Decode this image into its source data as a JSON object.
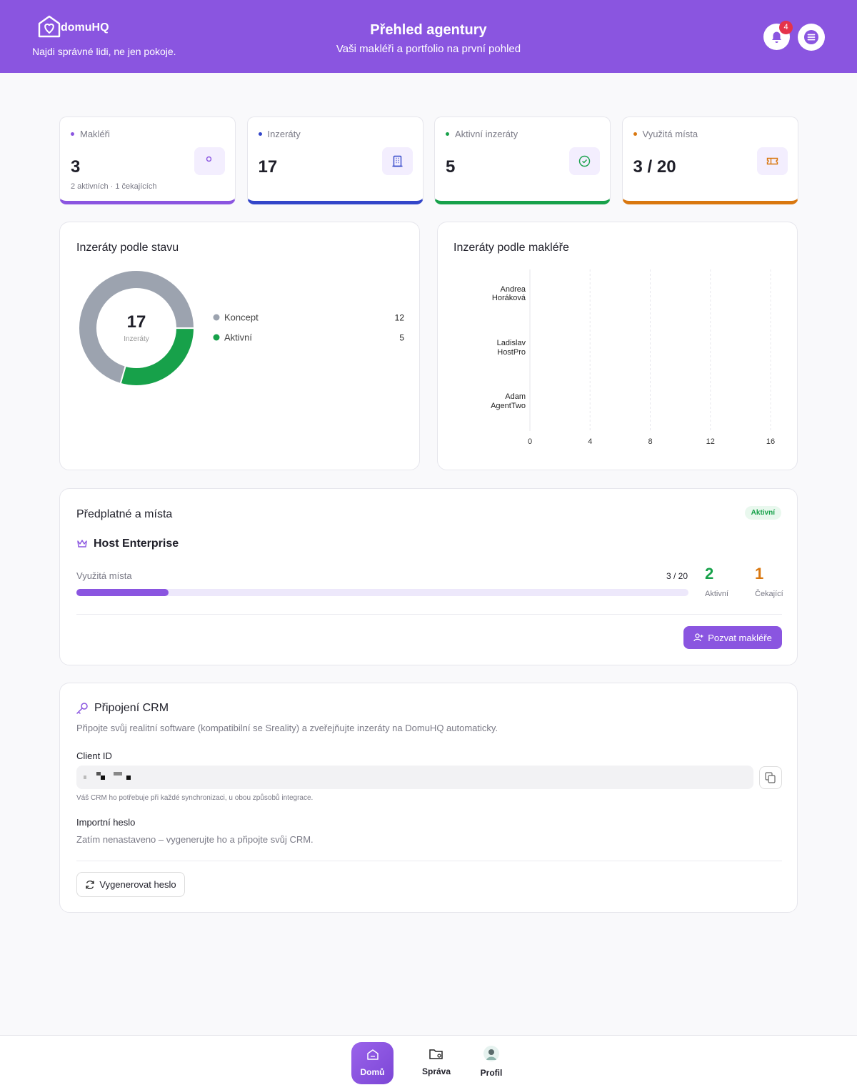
{
  "header": {
    "logo": "domuHQ",
    "tagline": "Najdi správné lidi, ne jen pokoje.",
    "title": "Přehled agentury",
    "subtitle": "Vaši makléři a portfolio na první pohled",
    "notifications": 4
  },
  "stats": [
    {
      "label": "Makléři",
      "value": "3",
      "note": "2 aktivních · 1 čekajících",
      "color": "#8b55e0"
    },
    {
      "label": "Inzeráty",
      "value": "17",
      "color": "#3346c9"
    },
    {
      "label": "Aktivní inzeráty",
      "value": "5",
      "color": "#17a14a"
    },
    {
      "label": "Využitá místa",
      "value": "3 / 20",
      "color": "#d9770f"
    }
  ],
  "chart_data": [
    {
      "type": "donut",
      "title": "Inzeráty podle stavu",
      "center_value": 17,
      "center_label": "Inzeráty",
      "categories": [
        "Koncept",
        "Aktivní"
      ],
      "values": [
        12,
        5
      ],
      "colors": [
        "#9ca3af",
        "#17a14a"
      ]
    },
    {
      "type": "hbar",
      "title": "Inzeráty podle makléře",
      "categories": [
        "Andrea Horáková",
        "Ladislav HostPro",
        "Adam AgentTwo"
      ],
      "values": [
        0,
        0,
        0
      ],
      "color": "#8b55e0",
      "xlim": [
        0,
        16
      ],
      "xticks": [
        0,
        4,
        8,
        12,
        16
      ],
      "grid": true
    }
  ],
  "subscription": {
    "title": "Předplatné a místa",
    "status": "Aktivní",
    "plan": "Host Enterprise",
    "seats_label": "Využitá místa",
    "seats": "3 / 20",
    "active_count": "2",
    "active_label": "Aktivní",
    "pending_count": "1",
    "pending_label": "Čekající",
    "invite_button": "Pozvat makléře"
  },
  "crm": {
    "title": "Připojení CRM",
    "description": "Připojte svůj realitní software (kompatibilní se Sreality) a zveřejňujte inzeráty na DomuHQ automaticky.",
    "client_id_label": "Client ID",
    "client_id_hint": "Váš CRM ho potřebuje při každé synchronizaci, u obou způsobů integrace.",
    "password_label": "Importní heslo",
    "password_status": "Zatím nenastaveno – vygenerujte ho a připojte svůj CRM.",
    "generate_button": "Vygenerovat heslo"
  },
  "nav": [
    "Domů",
    "Správa",
    "Profil"
  ]
}
